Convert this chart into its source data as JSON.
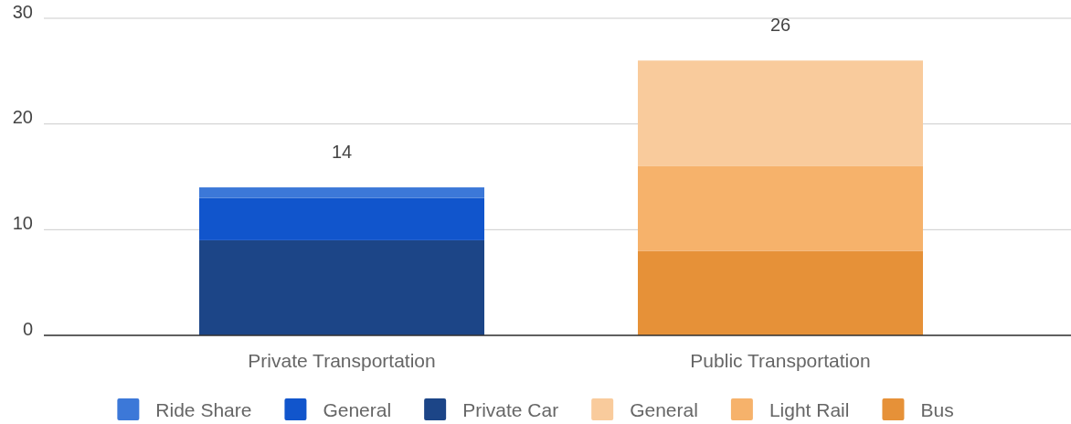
{
  "chart_data": {
    "type": "bar",
    "stacked": true,
    "categories": [
      "Private Transportation",
      "Public Transportation"
    ],
    "series": [
      {
        "name": "Bus",
        "color": "#e69138",
        "values": [
          null,
          8
        ]
      },
      {
        "name": "Light Rail",
        "color": "#f6b26b",
        "values": [
          null,
          8
        ]
      },
      {
        "name": "General",
        "color": "#f9cb9c",
        "values": [
          null,
          10
        ]
      },
      {
        "name": "Private Car",
        "color": "#1c4587",
        "values": [
          9,
          null
        ]
      },
      {
        "name": "General",
        "color": "#1155cc",
        "values": [
          4,
          null
        ]
      },
      {
        "name": "Ride Share",
        "color": "#3c78d8",
        "values": [
          1,
          null
        ]
      }
    ],
    "totals": [
      "14",
      "26"
    ],
    "ylim": [
      0,
      30
    ],
    "yticks": [
      0,
      10,
      20,
      30
    ],
    "grid": "y",
    "legend": "bottom"
  }
}
